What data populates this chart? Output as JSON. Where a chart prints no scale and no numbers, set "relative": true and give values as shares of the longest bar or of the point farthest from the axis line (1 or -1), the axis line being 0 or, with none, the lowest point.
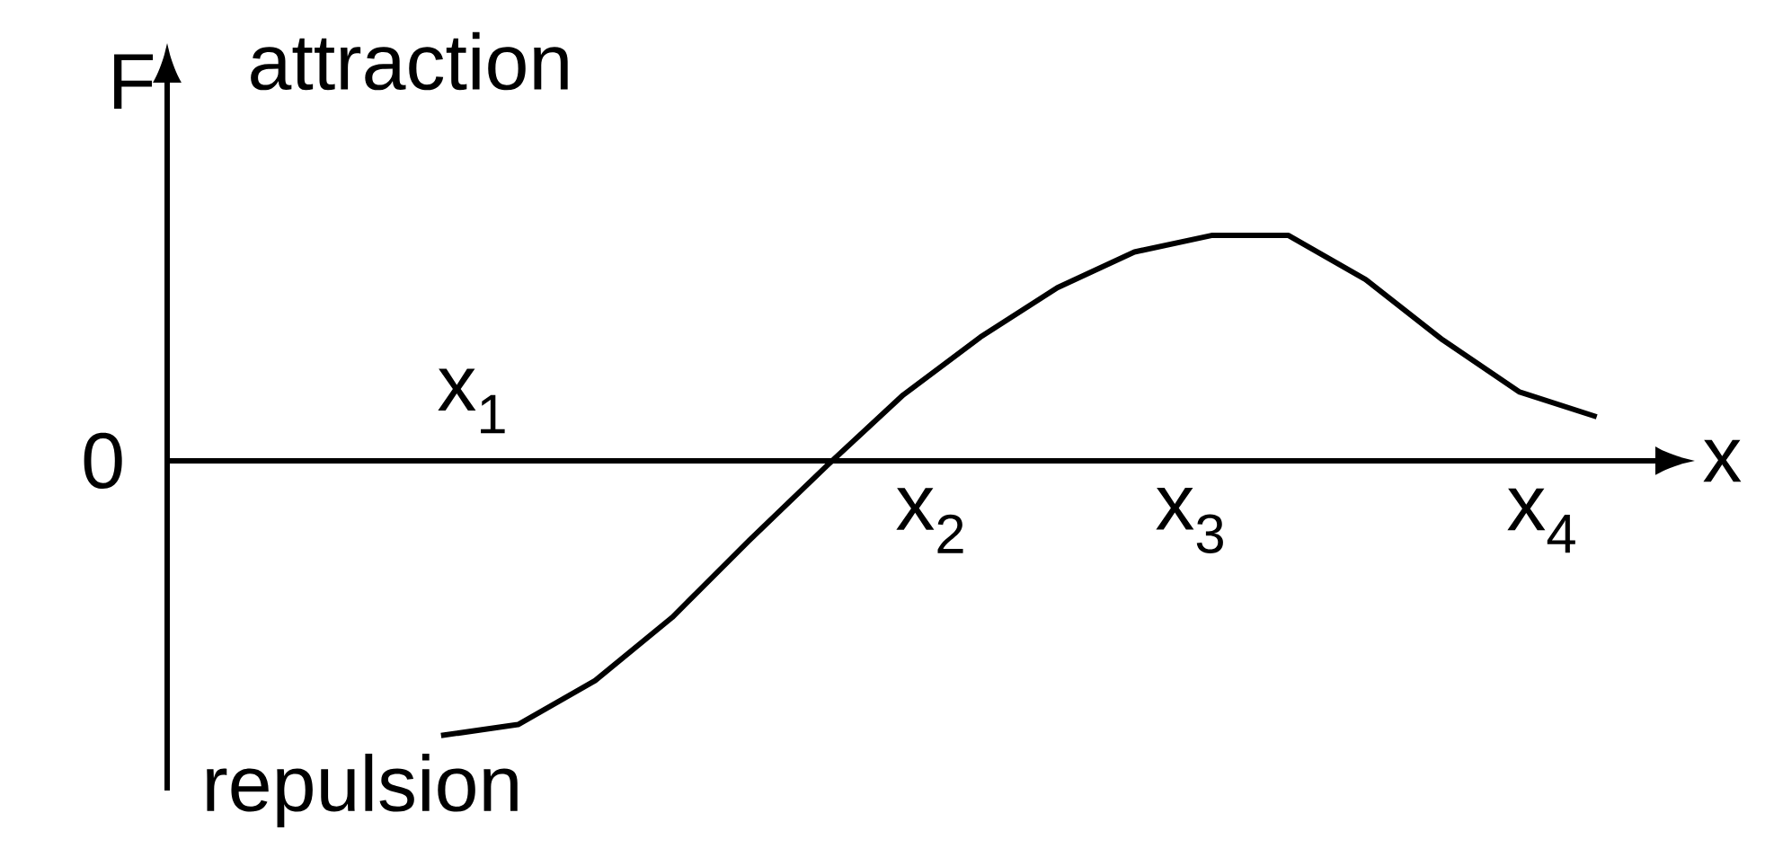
{
  "chart_data": {
    "type": "line",
    "relative": true,
    "xlabel": "x",
    "ylabel": "F",
    "annotations": [
      "attraction",
      "repulsion",
      "0",
      "x$_{1}$",
      "x$_{2}$",
      "x$_{3}$",
      "x$_{4}$"
    ],
    "categories": [
      null,
      null,
      null,
      null,
      null,
      null,
      null,
      null,
      null,
      null,
      null,
      null,
      null,
      null,
      null,
      null
    ],
    "series": [
      {
        "color": "#000000",
        "values": [
          -1.0,
          -0.96,
          -0.8,
          -0.57,
          -0.29,
          -0.02,
          0.24,
          0.45,
          0.63,
          0.76,
          0.82,
          0.82,
          0.66,
          0.44,
          0.25,
          0.16
        ]
      }
    ]
  }
}
